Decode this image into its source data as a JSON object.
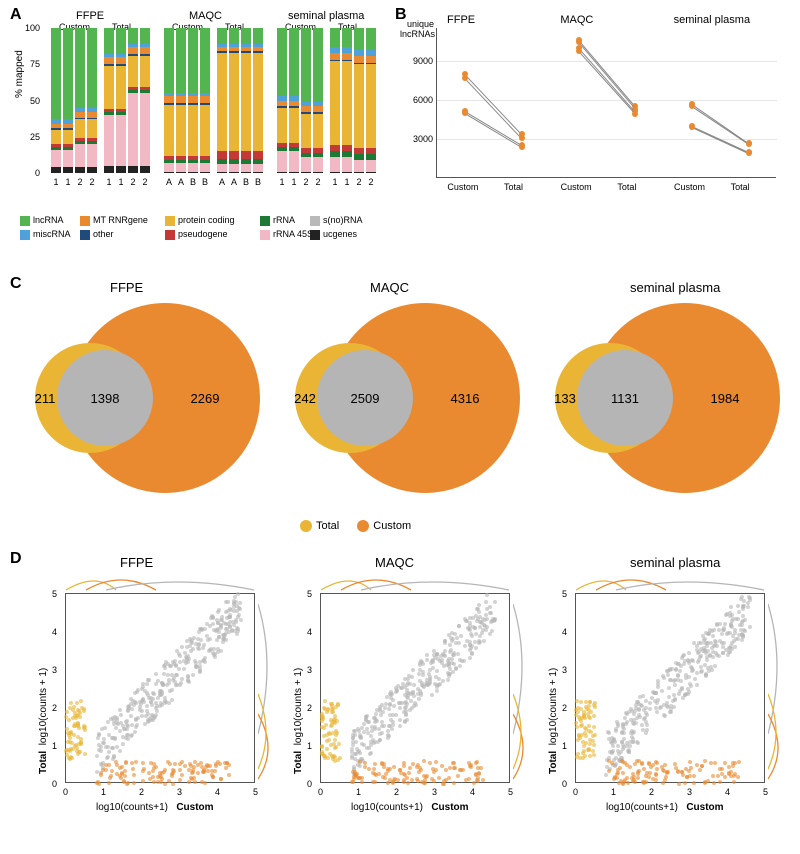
{
  "colors": {
    "lncRNA": "#52b54f",
    "miscRNA": "#4ea2d9",
    "MT_RNRgene": "#e98a31",
    "other": "#1f4a7a",
    "protein_coding": "#eab534",
    "pseudogene": "#c23935",
    "rRNA": "#1c7a35",
    "rRNA_45S": "#f2b8c4",
    "snoRNA": "#b9b9b9",
    "ucgenes": "#222222",
    "total": "#eab534",
    "custom": "#e98a31",
    "shared": "#b5b5b5"
  },
  "panelA": {
    "labels": {
      "A": "A"
    },
    "y_ticks": [
      0,
      25,
      50,
      75,
      100
    ],
    "sections": [
      "FFPE",
      "MAQC",
      "seminal plasma"
    ],
    "subs": [
      "Custom",
      "Total"
    ],
    "sample_labels": [
      [
        "1",
        "1",
        "2",
        "2"
      ],
      [
        "A",
        "A",
        "B",
        "B"
      ],
      [
        "1",
        "1",
        "2",
        "2"
      ]
    ],
    "bars": {
      "FFPE_Custom": [
        {
          "ucgenes": 4,
          "rRNA_45S": 12,
          "rRNA": 2,
          "pseudogene": 2,
          "protein_coding": 10,
          "other": 1,
          "MT_RNRgene": 3,
          "miscRNA": 3,
          "lncRNA": 63
        },
        {
          "ucgenes": 4,
          "rRNA_45S": 12,
          "rRNA": 2,
          "pseudogene": 2,
          "protein_coding": 10,
          "other": 1,
          "MT_RNRgene": 3,
          "miscRNA": 3,
          "lncRNA": 63
        },
        {
          "ucgenes": 4,
          "rRNA_45S": 16,
          "rRNA": 2,
          "pseudogene": 2,
          "protein_coding": 13,
          "other": 1,
          "MT_RNRgene": 4,
          "miscRNA": 3,
          "lncRNA": 55
        },
        {
          "ucgenes": 4,
          "rRNA_45S": 16,
          "rRNA": 2,
          "pseudogene": 2,
          "protein_coding": 13,
          "other": 1,
          "MT_RNRgene": 4,
          "miscRNA": 3,
          "lncRNA": 55
        }
      ],
      "FFPE_Total": [
        {
          "ucgenes": 5,
          "rRNA_45S": 35,
          "rRNA": 2,
          "pseudogene": 2,
          "protein_coding": 30,
          "other": 1,
          "MT_RNRgene": 5,
          "miscRNA": 2,
          "lncRNA": 18
        },
        {
          "ucgenes": 5,
          "rRNA_45S": 35,
          "rRNA": 2,
          "pseudogene": 2,
          "protein_coding": 30,
          "other": 1,
          "MT_RNRgene": 5,
          "miscRNA": 2,
          "lncRNA": 18
        },
        {
          "ucgenes": 5,
          "rRNA_45S": 50,
          "rRNA": 2,
          "pseudogene": 2,
          "protein_coding": 22,
          "other": 1,
          "MT_RNRgene": 5,
          "miscRNA": 2,
          "lncRNA": 11
        },
        {
          "ucgenes": 5,
          "rRNA_45S": 50,
          "rRNA": 2,
          "pseudogene": 2,
          "protein_coding": 22,
          "other": 1,
          "MT_RNRgene": 5,
          "miscRNA": 2,
          "lncRNA": 11
        }
      ],
      "MAQC_Custom": [
        {
          "ucgenes": 1,
          "rRNA_45S": 6,
          "rRNA": 2,
          "pseudogene": 3,
          "protein_coding": 35,
          "other": 1,
          "MT_RNRgene": 5,
          "miscRNA": 2,
          "lncRNA": 45
        },
        {
          "ucgenes": 1,
          "rRNA_45S": 6,
          "rRNA": 2,
          "pseudogene": 3,
          "protein_coding": 35,
          "other": 1,
          "MT_RNRgene": 5,
          "miscRNA": 2,
          "lncRNA": 45
        },
        {
          "ucgenes": 1,
          "rRNA_45S": 6,
          "rRNA": 2,
          "pseudogene": 3,
          "protein_coding": 35,
          "other": 1,
          "MT_RNRgene": 5,
          "miscRNA": 2,
          "lncRNA": 45
        },
        {
          "ucgenes": 1,
          "rRNA_45S": 6,
          "rRNA": 2,
          "pseudogene": 3,
          "protein_coding": 35,
          "other": 1,
          "MT_RNRgene": 5,
          "miscRNA": 2,
          "lncRNA": 45
        }
      ],
      "MAQC_Total": [
        {
          "ucgenes": 1,
          "rRNA_45S": 5,
          "rRNA": 4,
          "pseudogene": 5,
          "protein_coding": 68,
          "other": 1,
          "MT_RNRgene": 3,
          "miscRNA": 2,
          "lncRNA": 11
        },
        {
          "ucgenes": 1,
          "rRNA_45S": 5,
          "rRNA": 4,
          "pseudogene": 5,
          "protein_coding": 68,
          "other": 1,
          "MT_RNRgene": 3,
          "miscRNA": 2,
          "lncRNA": 11
        },
        {
          "ucgenes": 1,
          "rRNA_45S": 5,
          "rRNA": 4,
          "pseudogene": 5,
          "protein_coding": 68,
          "other": 1,
          "MT_RNRgene": 3,
          "miscRNA": 2,
          "lncRNA": 11
        },
        {
          "ucgenes": 1,
          "rRNA_45S": 5,
          "rRNA": 4,
          "pseudogene": 5,
          "protein_coding": 68,
          "other": 1,
          "MT_RNRgene": 3,
          "miscRNA": 2,
          "lncRNA": 11
        }
      ],
      "SP_Custom": [
        {
          "ucgenes": 1,
          "rRNA_45S": 14,
          "rRNA": 3,
          "pseudogene": 3,
          "protein_coding": 24,
          "other": 1,
          "MT_RNRgene": 4,
          "miscRNA": 3,
          "lncRNA": 47
        },
        {
          "ucgenes": 1,
          "rRNA_45S": 14,
          "rRNA": 3,
          "pseudogene": 3,
          "protein_coding": 24,
          "other": 1,
          "MT_RNRgene": 4,
          "miscRNA": 3,
          "lncRNA": 47
        },
        {
          "ucgenes": 1,
          "rRNA_45S": 10,
          "rRNA": 3,
          "pseudogene": 3,
          "protein_coding": 24,
          "other": 1,
          "MT_RNRgene": 4,
          "miscRNA": 3,
          "lncRNA": 51
        },
        {
          "ucgenes": 1,
          "rRNA_45S": 10,
          "rRNA": 3,
          "pseudogene": 3,
          "protein_coding": 24,
          "other": 1,
          "MT_RNRgene": 4,
          "miscRNA": 3,
          "lncRNA": 51
        }
      ],
      "SP_Total": [
        {
          "ucgenes": 1,
          "rRNA_45S": 10,
          "rRNA": 4,
          "pseudogene": 4,
          "protein_coding": 58,
          "other": 1,
          "MT_RNRgene": 5,
          "miscRNA": 4,
          "lncRNA": 13
        },
        {
          "ucgenes": 1,
          "rRNA_45S": 10,
          "rRNA": 4,
          "pseudogene": 4,
          "protein_coding": 58,
          "other": 1,
          "MT_RNRgene": 5,
          "miscRNA": 4,
          "lncRNA": 13
        },
        {
          "ucgenes": 1,
          "rRNA_45S": 8,
          "rRNA": 4,
          "pseudogene": 4,
          "protein_coding": 58,
          "other": 1,
          "MT_RNRgene": 5,
          "miscRNA": 4,
          "lncRNA": 15
        },
        {
          "ucgenes": 1,
          "rRNA_45S": 8,
          "rRNA": 4,
          "pseudogene": 4,
          "protein_coding": 58,
          "other": 1,
          "MT_RNRgene": 5,
          "miscRNA": 4,
          "lncRNA": 15
        }
      ]
    },
    "legend": [
      {
        "key": "lncRNA",
        "label": "lncRNA"
      },
      {
        "key": "MT_RNRgene",
        "label": "MT RNRgene"
      },
      {
        "key": "protein_coding",
        "label": "protein coding"
      },
      {
        "key": "rRNA",
        "label": "rRNA"
      },
      {
        "key": "snoRNA",
        "label": "s(no)RNA"
      },
      {
        "key": "miscRNA",
        "label": "miscRNA"
      },
      {
        "key": "other",
        "label": "other"
      },
      {
        "key": "pseudogene",
        "label": "pseudogene"
      },
      {
        "key": "rRNA_45S",
        "label": "rRNA 45S"
      },
      {
        "key": "ucgenes",
        "label": "ucgenes"
      }
    ]
  },
  "panelB": {
    "label": "B",
    "ylabel": "unique\nlncRNAs",
    "y_ticks": [
      3000,
      6000,
      9000
    ],
    "x_cats": [
      "Custom",
      "Total"
    ],
    "data": {
      "FFPE": [
        [
          8000,
          3400
        ],
        [
          7700,
          3100
        ],
        [
          5100,
          2500
        ],
        [
          5000,
          2400
        ]
      ],
      "MAQC": [
        [
          10600,
          5500
        ],
        [
          10400,
          5300
        ],
        [
          10000,
          5100
        ],
        [
          9700,
          4900
        ]
      ],
      "seminal plasma": [
        [
          5700,
          2700
        ],
        [
          5500,
          2600
        ],
        [
          4000,
          2000
        ],
        [
          3900,
          1900
        ]
      ]
    }
  },
  "panelC": {
    "label": "C",
    "sets": {
      "FFPE": {
        "total_only": 211,
        "shared": 1398,
        "custom_only": 2269
      },
      "MAQC": {
        "total_only": 242,
        "shared": 2509,
        "custom_only": 4316
      },
      "seminal plasma": {
        "total_only": 133,
        "shared": 1131,
        "custom_only": 1984
      }
    },
    "legend": [
      {
        "key": "total",
        "label": "Total"
      },
      {
        "key": "custom",
        "label": "Custom"
      }
    ]
  },
  "panelD": {
    "label": "D",
    "xlabel": "log10(counts+1)",
    "ylabel": "log10(counts + 1)",
    "xside": "Custom",
    "yside": "Total",
    "xlim": [
      0,
      5
    ],
    "ylim": [
      0,
      5
    ],
    "xticks": [
      0,
      1,
      2,
      3,
      4,
      5
    ],
    "yticks": [
      0,
      1,
      2,
      3,
      4,
      5
    ],
    "facets": [
      "FFPE",
      "MAQC",
      "seminal plasma"
    ]
  }
}
